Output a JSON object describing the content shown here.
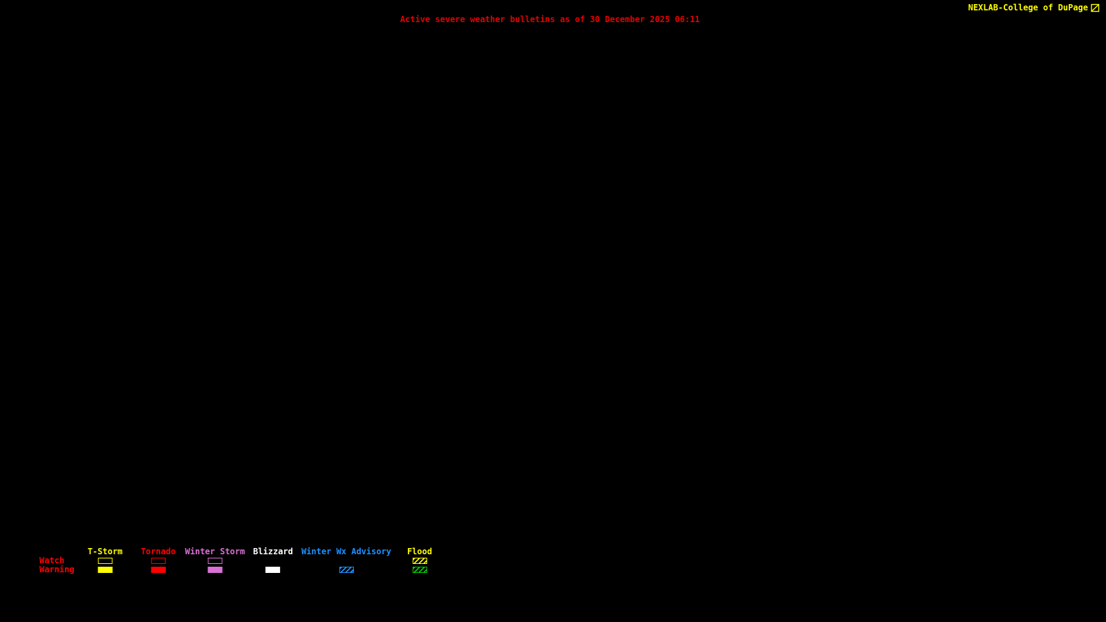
{
  "window": {
    "background_color": "#000000"
  },
  "header": {
    "title": "Active severe weather bulletins as of 30 December 2025 06:11",
    "title_color": "#e60000",
    "brand": "NEXLAB-College of DuPage",
    "brand_color": "#ffff00",
    "brand_icon": "box-diagonal-icon"
  },
  "legend": {
    "label_color": "#ff0000",
    "rows": [
      {
        "label": "Watch"
      },
      {
        "label": "Warning"
      }
    ],
    "columns": [
      {
        "label": "T-Storm",
        "color": "#ffff00",
        "watch": "outline",
        "warning": "solid"
      },
      {
        "label": "Tornado",
        "color": "#ff0000",
        "watch": "outline",
        "warning": "solid"
      },
      {
        "label": "Winter Storm",
        "color": "#da70d6",
        "watch": "outline",
        "warning": "solid"
      },
      {
        "label": "Blizzard",
        "color": "#ffffff",
        "watch": "none",
        "warning": "solid"
      },
      {
        "label": "Winter Wx Advisory",
        "color": "#1e90ff",
        "watch": "none",
        "warning": "hatched"
      },
      {
        "label": "Flood",
        "color": "#ffff00",
        "watch": "hatched",
        "warning": "hatched",
        "warning_color": "#00cd00"
      }
    ]
  }
}
